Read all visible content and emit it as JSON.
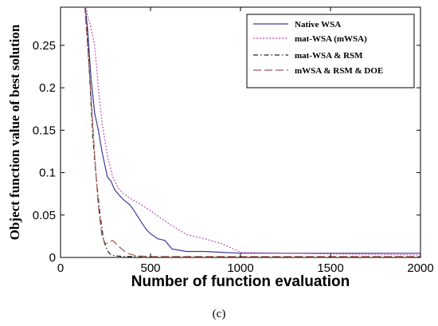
{
  "chart_data": {
    "type": "line",
    "xlabel": "Number of function evaluation",
    "ylabel": "Object function value of best solution",
    "xlim": [
      0,
      2000
    ],
    "ylim": [
      0,
      0.295
    ],
    "xticks": [
      0,
      500,
      1000,
      1500,
      2000
    ],
    "xtick_labels": [
      "0",
      "500",
      "1000",
      "1500",
      "2000"
    ],
    "yticks": [
      0,
      0.05,
      0.1,
      0.15,
      0.2,
      0.25
    ],
    "ytick_labels": [
      "0",
      "0.05",
      "0.1",
      "0.15",
      "0.2",
      "0.25"
    ],
    "grid": false,
    "legend_position": "top-right",
    "caption": "(c)",
    "series": [
      {
        "name": "Native WSA",
        "color": "#3b3b9a",
        "dash": "solid",
        "x": [
          130,
          150,
          170,
          190,
          210,
          230,
          260,
          280,
          300,
          320,
          350,
          380,
          400,
          430,
          460,
          480,
          500,
          540,
          580,
          620,
          700,
          800,
          900,
          1000,
          1500,
          2000
        ],
        "y": [
          0.31,
          0.27,
          0.21,
          0.17,
          0.15,
          0.125,
          0.095,
          0.09,
          0.08,
          0.075,
          0.068,
          0.063,
          0.058,
          0.048,
          0.038,
          0.032,
          0.028,
          0.022,
          0.02,
          0.01,
          0.007,
          0.007,
          0.006,
          0.005,
          0.005,
          0.005
        ]
      },
      {
        "name": "mat-WSA (mWSA)",
        "color": "#c050b8",
        "dash": "dotted",
        "x": [
          130,
          150,
          170,
          190,
          210,
          230,
          260,
          290,
          320,
          350,
          400,
          450,
          500,
          600,
          700,
          800,
          900,
          1000,
          1500,
          2000
        ],
        "y": [
          0.31,
          0.285,
          0.27,
          0.25,
          0.2,
          0.16,
          0.12,
          0.095,
          0.082,
          0.075,
          0.068,
          0.062,
          0.055,
          0.04,
          0.027,
          0.022,
          0.016,
          0.006,
          0.004,
          0.003
        ]
      },
      {
        "name": "mat-WSA & RSM",
        "color": "#222222",
        "dash": "dashdot",
        "x": [
          130,
          150,
          165,
          180,
          200,
          220,
          240,
          260,
          280,
          300,
          350,
          400,
          500,
          1000,
          1500,
          2000
        ],
        "y": [
          0.31,
          0.26,
          0.2,
          0.14,
          0.09,
          0.05,
          0.02,
          0.008,
          0.003,
          0.002,
          0.001,
          0.001,
          0.0,
          0.0,
          0.0,
          0.0
        ]
      },
      {
        "name": "mWSA & RSM & DOE",
        "color": "#a55a50",
        "dash": "longdash",
        "x": [
          130,
          150,
          170,
          190,
          210,
          230,
          250,
          270,
          290,
          310,
          340,
          370,
          420,
          500,
          1000,
          1500,
          2000
        ],
        "y": [
          0.31,
          0.25,
          0.19,
          0.12,
          0.06,
          0.025,
          0.016,
          0.018,
          0.02,
          0.016,
          0.01,
          0.005,
          0.002,
          0.001,
          0.001,
          0.001,
          0.001
        ]
      }
    ]
  }
}
